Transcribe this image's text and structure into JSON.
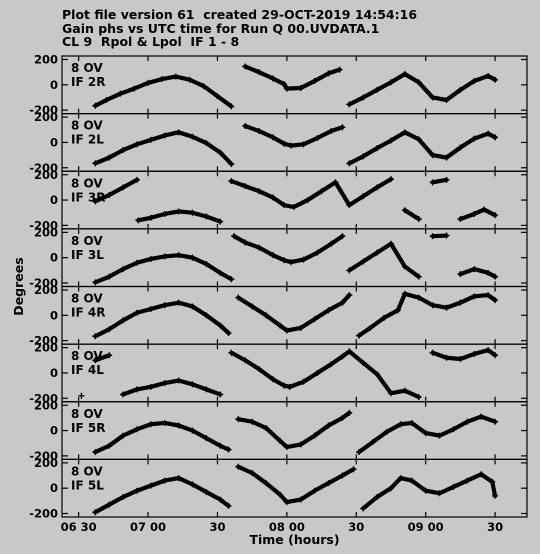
{
  "header": {
    "line1": "Plot file version 61  created 29-OCT-2019 14:54:16",
    "line2": "Gain phs vs UTC time for Run Q 00.UVDATA.1",
    "line3": "CL 9  Rpol & Lpol  IF 1 - 8"
  },
  "chart_data": {
    "type": "scatter",
    "title": "Gain phs vs UTC time for Run Q 00.UVDATA.1",
    "xlabel": "Time (hours)",
    "ylabel": "Degrees",
    "xlim": [
      6.38,
      9.73
    ],
    "ylim": [
      -200,
      200
    ],
    "yticks": [
      200,
      0,
      -200
    ],
    "xticks": [
      {
        "value": 6.5,
        "label": "06 30"
      },
      {
        "value": 7.0,
        "label": "07 00"
      },
      {
        "value": 7.5,
        "label": "30"
      },
      {
        "value": 8.0,
        "label": "08 00"
      },
      {
        "value": 8.5,
        "label": "30"
      },
      {
        "value": 9.0,
        "label": "09 00"
      },
      {
        "value": 9.5,
        "label": "30"
      }
    ],
    "marker": "+",
    "panels": [
      {
        "antenna": "8 OV",
        "if": "IF 2R",
        "points": [
          [
            6.62,
            -165
          ],
          [
            6.7,
            -120
          ],
          [
            6.8,
            -70
          ],
          [
            6.9,
            -30
          ],
          [
            7.0,
            15
          ],
          [
            7.1,
            45
          ],
          [
            7.2,
            65
          ],
          [
            7.3,
            40
          ],
          [
            7.4,
            -10
          ],
          [
            7.5,
            -90
          ],
          [
            7.6,
            -170
          ],
          [
            7.7,
            145
          ],
          [
            7.8,
            100
          ],
          [
            7.9,
            50
          ],
          [
            7.98,
            5
          ],
          [
            8.0,
            -30
          ],
          [
            8.1,
            -25
          ],
          [
            8.2,
            30
          ],
          [
            8.3,
            90
          ],
          [
            8.38,
            120
          ],
          [
            8.45,
            -155
          ],
          [
            8.55,
            -100
          ],
          [
            8.65,
            -40
          ],
          [
            8.75,
            20
          ],
          [
            8.85,
            85
          ],
          [
            8.95,
            20
          ],
          [
            9.05,
            -100
          ],
          [
            9.15,
            -120
          ],
          [
            9.25,
            -40
          ],
          [
            9.35,
            30
          ],
          [
            9.45,
            70
          ],
          [
            9.5,
            40
          ]
        ]
      },
      {
        "antenna": "8 OV",
        "if": "IF 2L",
        "points": [
          [
            6.62,
            -165
          ],
          [
            6.72,
            -120
          ],
          [
            6.82,
            -60
          ],
          [
            6.92,
            -15
          ],
          [
            7.02,
            20
          ],
          [
            7.12,
            55
          ],
          [
            7.22,
            80
          ],
          [
            7.32,
            45
          ],
          [
            7.42,
            -5
          ],
          [
            7.52,
            -80
          ],
          [
            7.6,
            -170
          ],
          [
            7.7,
            130
          ],
          [
            7.8,
            90
          ],
          [
            7.9,
            40
          ],
          [
            7.98,
            -10
          ],
          [
            8.03,
            -25
          ],
          [
            8.12,
            -15
          ],
          [
            8.22,
            35
          ],
          [
            8.32,
            90
          ],
          [
            8.4,
            120
          ],
          [
            8.45,
            -165
          ],
          [
            8.55,
            -110
          ],
          [
            8.65,
            -45
          ],
          [
            8.75,
            15
          ],
          [
            8.85,
            80
          ],
          [
            8.95,
            25
          ],
          [
            9.05,
            -100
          ],
          [
            9.15,
            -120
          ],
          [
            9.25,
            -40
          ],
          [
            9.35,
            30
          ],
          [
            9.45,
            70
          ],
          [
            9.5,
            40
          ]
        ]
      },
      {
        "antenna": "8 OV",
        "if": "IF 3R",
        "points": [
          [
            6.62,
            -10
          ],
          [
            6.72,
            40
          ],
          [
            6.82,
            100
          ],
          [
            6.92,
            160
          ],
          [
            6.93,
            -160
          ],
          [
            7.02,
            -140
          ],
          [
            7.12,
            -110
          ],
          [
            7.22,
            -90
          ],
          [
            7.32,
            -100
          ],
          [
            7.42,
            -130
          ],
          [
            7.52,
            -170
          ],
          [
            7.6,
            150
          ],
          [
            7.7,
            110
          ],
          [
            7.8,
            70
          ],
          [
            7.9,
            20
          ],
          [
            7.98,
            -40
          ],
          [
            8.05,
            -55
          ],
          [
            8.15,
            0
          ],
          [
            8.25,
            70
          ],
          [
            8.35,
            140
          ],
          [
            8.45,
            -40
          ],
          [
            8.55,
            30
          ],
          [
            8.65,
            100
          ],
          [
            8.75,
            165
          ],
          [
            8.85,
            -80
          ],
          [
            8.95,
            -150
          ],
          [
            9.05,
            140
          ],
          [
            9.15,
            160
          ],
          [
            9.25,
            -150
          ],
          [
            9.35,
            -110
          ],
          [
            9.42,
            -75
          ],
          [
            9.5,
            -120
          ]
        ]
      },
      {
        "antenna": "8 OV",
        "if": "IF 3L",
        "points": [
          [
            6.62,
            -195
          ],
          [
            6.72,
            -150
          ],
          [
            6.82,
            -90
          ],
          [
            6.92,
            -40
          ],
          [
            7.02,
            -10
          ],
          [
            7.12,
            10
          ],
          [
            7.22,
            20
          ],
          [
            7.32,
            0
          ],
          [
            7.42,
            -50
          ],
          [
            7.52,
            -120
          ],
          [
            7.6,
            -170
          ],
          [
            7.62,
            170
          ],
          [
            7.7,
            120
          ],
          [
            7.8,
            80
          ],
          [
            7.9,
            20
          ],
          [
            7.98,
            -20
          ],
          [
            8.03,
            -35
          ],
          [
            8.12,
            -15
          ],
          [
            8.22,
            40
          ],
          [
            8.32,
            110
          ],
          [
            8.4,
            170
          ],
          [
            8.45,
            -100
          ],
          [
            8.55,
            -30
          ],
          [
            8.65,
            40
          ],
          [
            8.75,
            110
          ],
          [
            8.85,
            -70
          ],
          [
            8.95,
            -150
          ],
          [
            9.05,
            170
          ],
          [
            9.15,
            175
          ],
          [
            9.25,
            -130
          ],
          [
            9.35,
            -90
          ],
          [
            9.45,
            -120
          ],
          [
            9.5,
            -150
          ]
        ]
      },
      {
        "antenna": "8 OV",
        "if": "IF 4R",
        "points": [
          [
            6.62,
            -165
          ],
          [
            6.72,
            -110
          ],
          [
            6.82,
            -40
          ],
          [
            6.92,
            20
          ],
          [
            7.02,
            50
          ],
          [
            7.12,
            80
          ],
          [
            7.22,
            100
          ],
          [
            7.32,
            70
          ],
          [
            7.42,
            0
          ],
          [
            7.52,
            -80
          ],
          [
            7.58,
            -140
          ],
          [
            7.65,
            140
          ],
          [
            7.75,
            70
          ],
          [
            7.85,
            0
          ],
          [
            7.95,
            -80
          ],
          [
            8.0,
            -120
          ],
          [
            8.1,
            -100
          ],
          [
            8.2,
            -30
          ],
          [
            8.3,
            40
          ],
          [
            8.4,
            100
          ],
          [
            8.45,
            160
          ],
          [
            8.52,
            -160
          ],
          [
            8.6,
            -100
          ],
          [
            8.7,
            -20
          ],
          [
            8.8,
            40
          ],
          [
            8.85,
            170
          ],
          [
            8.95,
            140
          ],
          [
            9.05,
            80
          ],
          [
            9.15,
            60
          ],
          [
            9.25,
            100
          ],
          [
            9.35,
            150
          ],
          [
            9.45,
            160
          ],
          [
            9.5,
            120
          ]
        ]
      },
      {
        "antenna": "8 OV",
        "if": "IF 4L",
        "points": [
          [
            6.52,
            -180
          ],
          [
            6.62,
            100
          ],
          [
            6.72,
            140
          ],
          [
            6.82,
            -170
          ],
          [
            6.92,
            -130
          ],
          [
            7.02,
            -110
          ],
          [
            7.12,
            -80
          ],
          [
            7.22,
            -60
          ],
          [
            7.32,
            -90
          ],
          [
            7.42,
            -130
          ],
          [
            7.52,
            -170
          ],
          [
            7.6,
            160
          ],
          [
            7.7,
            100
          ],
          [
            7.8,
            30
          ],
          [
            7.9,
            -50
          ],
          [
            7.98,
            -100
          ],
          [
            8.02,
            -110
          ],
          [
            8.12,
            -70
          ],
          [
            8.22,
            0
          ],
          [
            8.32,
            70
          ],
          [
            8.4,
            130
          ],
          [
            8.45,
            170
          ],
          [
            8.55,
            80
          ],
          [
            8.65,
            -10
          ],
          [
            8.75,
            -160
          ],
          [
            8.85,
            -140
          ],
          [
            8.95,
            -190
          ],
          [
            9.05,
            160
          ],
          [
            9.15,
            120
          ],
          [
            9.25,
            110
          ],
          [
            9.35,
            150
          ],
          [
            9.45,
            180
          ],
          [
            9.5,
            140
          ]
        ]
      },
      {
        "antenna": "8 OV",
        "if": "IF 5R",
        "points": [
          [
            6.62,
            -170
          ],
          [
            6.72,
            -120
          ],
          [
            6.82,
            -40
          ],
          [
            6.92,
            10
          ],
          [
            7.02,
            50
          ],
          [
            7.12,
            60
          ],
          [
            7.22,
            40
          ],
          [
            7.32,
            0
          ],
          [
            7.42,
            -60
          ],
          [
            7.52,
            -120
          ],
          [
            7.58,
            -150
          ],
          [
            7.65,
            90
          ],
          [
            7.75,
            70
          ],
          [
            7.85,
            20
          ],
          [
            7.95,
            -80
          ],
          [
            8.0,
            -130
          ],
          [
            8.1,
            -110
          ],
          [
            8.2,
            -40
          ],
          [
            8.3,
            40
          ],
          [
            8.4,
            100
          ],
          [
            8.45,
            140
          ],
          [
            8.52,
            -170
          ],
          [
            8.62,
            -90
          ],
          [
            8.72,
            -10
          ],
          [
            8.82,
            50
          ],
          [
            8.9,
            60
          ],
          [
            9.0,
            -20
          ],
          [
            9.1,
            -40
          ],
          [
            9.2,
            10
          ],
          [
            9.3,
            70
          ],
          [
            9.4,
            110
          ],
          [
            9.5,
            70
          ]
        ]
      },
      {
        "antenna": "8 OV",
        "if": "IF 5L",
        "points": [
          [
            6.62,
            -190
          ],
          [
            6.72,
            -130
          ],
          [
            6.82,
            -70
          ],
          [
            6.92,
            -20
          ],
          [
            7.02,
            20
          ],
          [
            7.12,
            60
          ],
          [
            7.22,
            80
          ],
          [
            7.32,
            30
          ],
          [
            7.42,
            -30
          ],
          [
            7.52,
            -90
          ],
          [
            7.58,
            -140
          ],
          [
            7.65,
            170
          ],
          [
            7.75,
            120
          ],
          [
            7.85,
            40
          ],
          [
            7.95,
            -50
          ],
          [
            8.0,
            -110
          ],
          [
            8.1,
            -90
          ],
          [
            8.2,
            -20
          ],
          [
            8.3,
            40
          ],
          [
            8.4,
            100
          ],
          [
            8.48,
            150
          ],
          [
            8.55,
            -160
          ],
          [
            8.65,
            -70
          ],
          [
            8.75,
            0
          ],
          [
            8.82,
            80
          ],
          [
            8.9,
            60
          ],
          [
            9.0,
            -20
          ],
          [
            9.1,
            -40
          ],
          [
            9.2,
            10
          ],
          [
            9.3,
            60
          ],
          [
            9.4,
            110
          ],
          [
            9.48,
            50
          ],
          [
            9.5,
            -60
          ]
        ]
      }
    ]
  }
}
